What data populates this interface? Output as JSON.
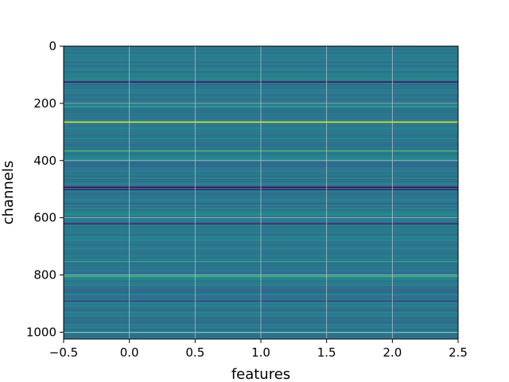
{
  "chart_data": {
    "type": "heatmap",
    "title": "",
    "xlabel": "features",
    "ylabel": "channels",
    "xlim": [
      -0.5,
      2.5
    ],
    "ylim": [
      1024,
      0
    ],
    "y_inverted": true,
    "grid": true,
    "colormap": "viridis",
    "x_ticks": [
      -0.5,
      0.0,
      0.5,
      1.0,
      1.5,
      2.0,
      2.5
    ],
    "x_tick_labels": [
      "−0.5",
      "0.0",
      "0.5",
      "1.0",
      "1.5",
      "2.0",
      "2.5"
    ],
    "y_ticks": [
      0,
      200,
      400,
      600,
      800,
      1000
    ],
    "y_tick_labels": [
      "0",
      "200",
      "400",
      "600",
      "800",
      "1000"
    ],
    "columns": 3,
    "rows": 1024,
    "base_level": 0.4,
    "highlighted_rows": [
      {
        "channel": 124,
        "level": 0.05
      },
      {
        "channel": 210,
        "level": 0.62
      },
      {
        "channel": 264,
        "level": 1.0
      },
      {
        "channel": 365,
        "level": 0.7
      },
      {
        "channel": 492,
        "level": 0.02
      },
      {
        "channel": 500,
        "level": 0.08
      },
      {
        "channel": 620,
        "level": 0.1
      },
      {
        "channel": 752,
        "level": 0.62
      },
      {
        "channel": 804,
        "level": 0.68
      },
      {
        "channel": 890,
        "level": 0.2
      },
      {
        "channel": 1000,
        "level": 0.62
      }
    ]
  }
}
